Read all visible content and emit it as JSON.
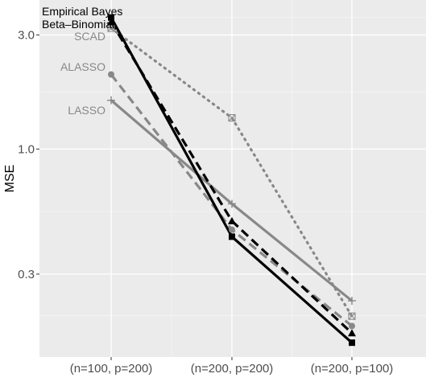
{
  "chart_data": {
    "type": "line",
    "title": "",
    "xlabel": "",
    "ylabel": "MSE",
    "y_scale": "log",
    "ylim": [
      0.135,
      4.2
    ],
    "categories": [
      "(n=100, p=200)",
      "(n=200, p=200)",
      "(n=200, p=100)"
    ],
    "y_ticks": [
      {
        "value": 0.3,
        "label": "0.3"
      },
      {
        "value": 1.0,
        "label": "1.0"
      },
      {
        "value": 3.0,
        "label": "3.0"
      }
    ],
    "grid": true,
    "background": "#ebebeb",
    "series": [
      {
        "name": "SCAD",
        "values": [
          3.2,
          1.35,
          0.2
        ],
        "color": "#888888",
        "line": "dotted",
        "marker": "box-x"
      },
      {
        "name": "ALASSO",
        "values": [
          2.05,
          0.46,
          0.182
        ],
        "color": "#888888",
        "line": "dashed",
        "marker": "circle"
      },
      {
        "name": "LASSO",
        "values": [
          1.6,
          0.59,
          0.232
        ],
        "color": "#888888",
        "line": "solid",
        "marker": "plus"
      },
      {
        "name": "Beta–Binomial",
        "values": [
          3.4,
          0.5,
          0.17
        ],
        "color": "#000000",
        "line": "dashed",
        "marker": "triangle"
      },
      {
        "name": "Empirical Bayes",
        "values": [
          3.55,
          0.43,
          0.155
        ],
        "color": "#000000",
        "line": "solid",
        "marker": "square"
      }
    ]
  }
}
